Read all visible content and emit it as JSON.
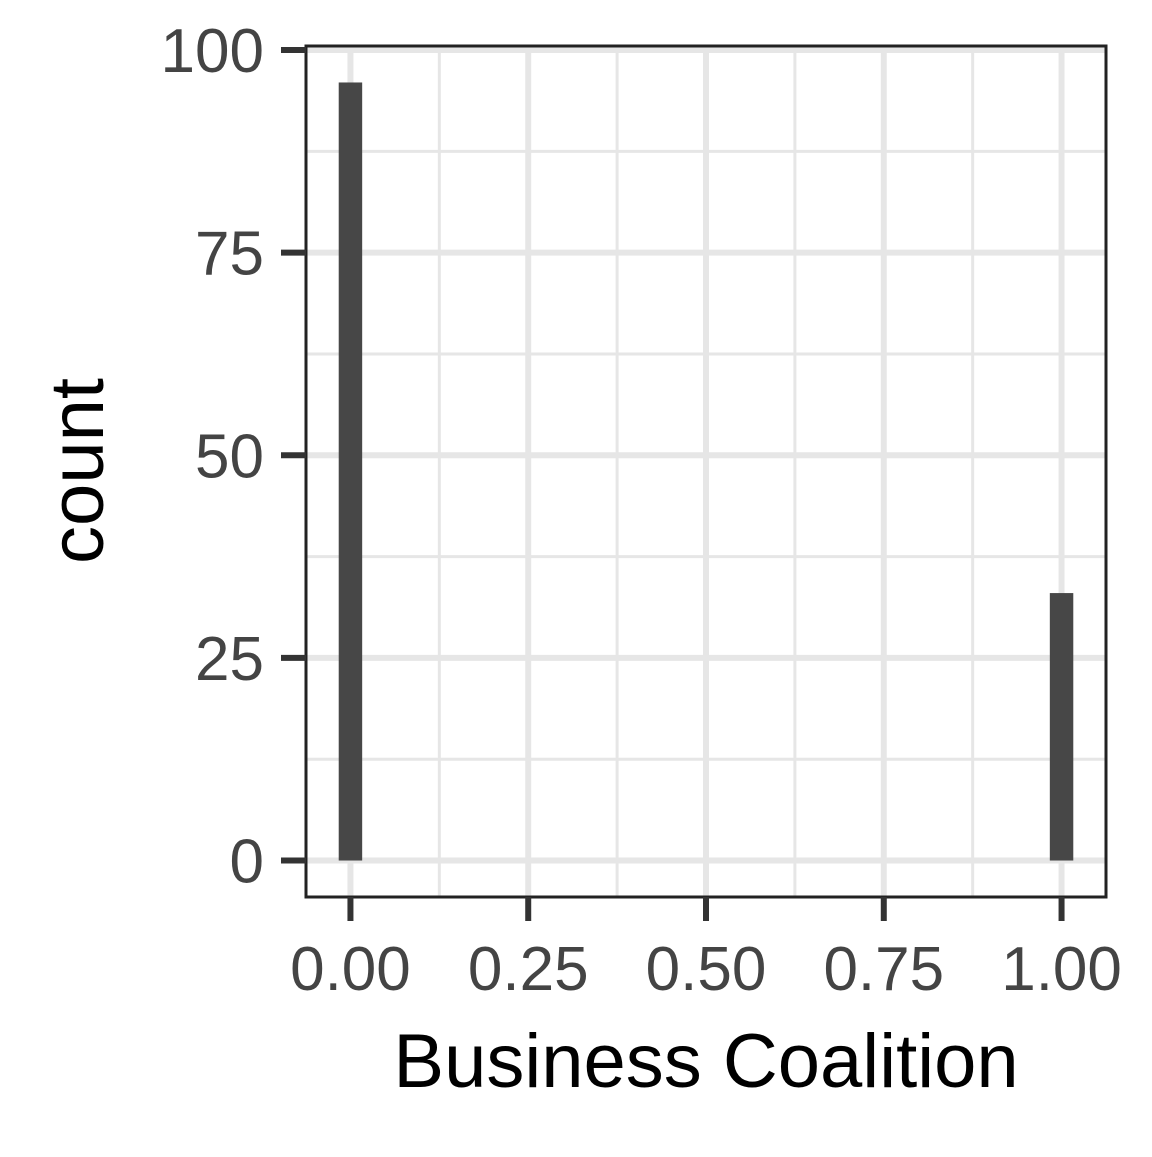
{
  "chart_data": {
    "type": "bar",
    "title": "",
    "xlabel": "Business Coalition",
    "ylabel": "count",
    "x": [
      0,
      1
    ],
    "values": [
      96,
      33
    ],
    "bar_width": 0.033,
    "xlim": [
      -0.0625,
      1.0625
    ],
    "ylim": [
      -4.5,
      100.5
    ],
    "x_ticks": [
      0,
      0.25,
      0.5,
      0.75,
      1
    ],
    "x_tick_labels": [
      "0.00",
      "0.25",
      "0.50",
      "0.75",
      "1.00"
    ],
    "y_ticks": [
      0,
      25,
      50,
      75,
      100
    ],
    "y_tick_labels": [
      "0",
      "25",
      "50",
      "75",
      "100"
    ],
    "x_minor_ticks": [
      0.125,
      0.375,
      0.625,
      0.875
    ],
    "y_minor_ticks": [
      12.5,
      37.5,
      62.5,
      87.5
    ],
    "grid": true,
    "legend": "none",
    "colors": {
      "bar": "#474747",
      "grid": "#e6e6e6",
      "frame": "#222222",
      "tick": "#333333"
    }
  }
}
